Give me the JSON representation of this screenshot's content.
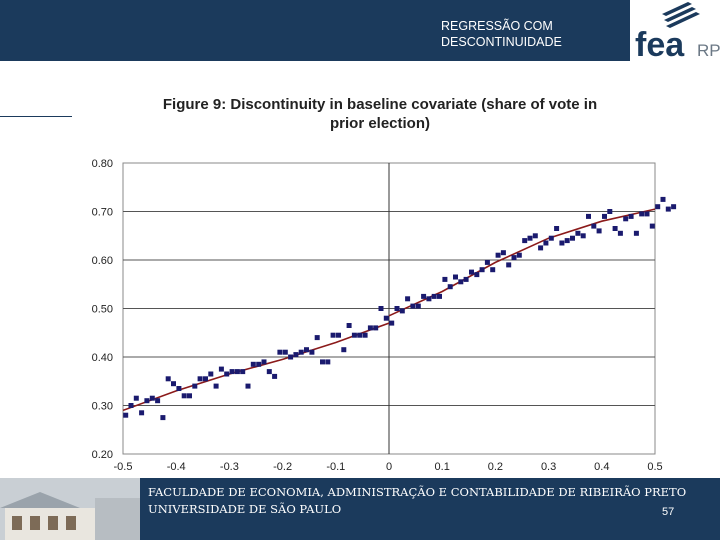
{
  "header": {
    "title_line1": "REGRESSÃO COM",
    "title_line2": "DESCONTINUIDADE",
    "logo_text": "fea",
    "logo_suffix": "RP"
  },
  "figure": {
    "title_line1": "Figure 9: Discontinuity in baseline covariate (share of vote in",
    "title_line2": "prior election)"
  },
  "chart_data": {
    "type": "scatter",
    "title": "Figure 9: Discontinuity in baseline covariate (share of vote in prior election)",
    "xlabel": "",
    "ylabel": "",
    "xlim": [
      -0.5,
      0.5
    ],
    "ylim": [
      0.2,
      0.8
    ],
    "x_ticks": [
      "-0.5",
      "-0.4",
      "-0.3",
      "-0.2",
      "-0.1",
      "0",
      "0.1",
      "0.2",
      "0.3",
      "0.4",
      "0.5"
    ],
    "y_ticks": [
      "0.20",
      "0.30",
      "0.40",
      "0.50",
      "0.60",
      "0.70",
      "0.80"
    ],
    "grid": "horizontal",
    "cutoff": 0,
    "points_color": "#1a1a6e",
    "fit_color": "#8b1a1a",
    "points": [
      [
        -0.495,
        0.28
      ],
      [
        -0.485,
        0.3
      ],
      [
        -0.475,
        0.315
      ],
      [
        -0.465,
        0.285
      ],
      [
        -0.455,
        0.31
      ],
      [
        -0.445,
        0.315
      ],
      [
        -0.435,
        0.31
      ],
      [
        -0.425,
        0.275
      ],
      [
        -0.415,
        0.355
      ],
      [
        -0.405,
        0.345
      ],
      [
        -0.395,
        0.335
      ],
      [
        -0.385,
        0.32
      ],
      [
        -0.375,
        0.32
      ],
      [
        -0.365,
        0.34
      ],
      [
        -0.355,
        0.355
      ],
      [
        -0.345,
        0.355
      ],
      [
        -0.335,
        0.365
      ],
      [
        -0.325,
        0.34
      ],
      [
        -0.315,
        0.375
      ],
      [
        -0.305,
        0.365
      ],
      [
        -0.295,
        0.37
      ],
      [
        -0.285,
        0.37
      ],
      [
        -0.275,
        0.37
      ],
      [
        -0.265,
        0.34
      ],
      [
        -0.255,
        0.385
      ],
      [
        -0.245,
        0.385
      ],
      [
        -0.235,
        0.39
      ],
      [
        -0.225,
        0.37
      ],
      [
        -0.215,
        0.36
      ],
      [
        -0.205,
        0.41
      ],
      [
        -0.195,
        0.41
      ],
      [
        -0.185,
        0.4
      ],
      [
        -0.175,
        0.405
      ],
      [
        -0.165,
        0.41
      ],
      [
        -0.155,
        0.415
      ],
      [
        -0.145,
        0.41
      ],
      [
        -0.135,
        0.44
      ],
      [
        -0.125,
        0.39
      ],
      [
        -0.115,
        0.39
      ],
      [
        -0.105,
        0.445
      ],
      [
        -0.095,
        0.445
      ],
      [
        -0.085,
        0.415
      ],
      [
        -0.075,
        0.465
      ],
      [
        -0.065,
        0.445
      ],
      [
        -0.055,
        0.445
      ],
      [
        -0.045,
        0.445
      ],
      [
        -0.035,
        0.46
      ],
      [
        -0.025,
        0.46
      ],
      [
        -0.015,
        0.5
      ],
      [
        -0.005,
        0.48
      ],
      [
        0.005,
        0.47
      ],
      [
        0.015,
        0.5
      ],
      [
        0.025,
        0.495
      ],
      [
        0.035,
        0.52
      ],
      [
        0.045,
        0.505
      ],
      [
        0.055,
        0.505
      ],
      [
        0.065,
        0.525
      ],
      [
        0.075,
        0.52
      ],
      [
        0.085,
        0.525
      ],
      [
        0.095,
        0.525
      ],
      [
        0.105,
        0.56
      ],
      [
        0.115,
        0.545
      ],
      [
        0.125,
        0.565
      ],
      [
        0.135,
        0.555
      ],
      [
        0.145,
        0.56
      ],
      [
        0.155,
        0.575
      ],
      [
        0.165,
        0.57
      ],
      [
        0.175,
        0.58
      ],
      [
        0.185,
        0.595
      ],
      [
        0.195,
        0.58
      ],
      [
        0.205,
        0.61
      ],
      [
        0.215,
        0.615
      ],
      [
        0.225,
        0.59
      ],
      [
        0.235,
        0.605
      ],
      [
        0.245,
        0.61
      ],
      [
        0.255,
        0.64
      ],
      [
        0.265,
        0.645
      ],
      [
        0.275,
        0.65
      ],
      [
        0.285,
        0.625
      ],
      [
        0.295,
        0.635
      ],
      [
        0.305,
        0.645
      ],
      [
        0.315,
        0.665
      ],
      [
        0.325,
        0.635
      ],
      [
        0.335,
        0.64
      ],
      [
        0.345,
        0.645
      ],
      [
        0.355,
        0.655
      ],
      [
        0.365,
        0.65
      ],
      [
        0.375,
        0.69
      ],
      [
        0.385,
        0.67
      ],
      [
        0.395,
        0.66
      ],
      [
        0.405,
        0.69
      ],
      [
        0.415,
        0.7
      ],
      [
        0.425,
        0.665
      ],
      [
        0.435,
        0.655
      ],
      [
        0.445,
        0.685
      ],
      [
        0.455,
        0.69
      ],
      [
        0.465,
        0.655
      ],
      [
        0.475,
        0.695
      ],
      [
        0.485,
        0.695
      ],
      [
        0.495,
        0.67
      ],
      [
        0.505,
        0.71
      ],
      [
        0.515,
        0.725
      ],
      [
        0.525,
        0.705
      ],
      [
        0.535,
        0.71
      ]
    ],
    "fit_left": [
      [
        -0.5,
        0.29
      ],
      [
        -0.4,
        0.33
      ],
      [
        -0.3,
        0.365
      ],
      [
        -0.2,
        0.395
      ],
      [
        -0.1,
        0.43
      ],
      [
        0,
        0.47
      ]
    ],
    "fit_right": [
      [
        0,
        0.485
      ],
      [
        0.1,
        0.535
      ],
      [
        0.2,
        0.595
      ],
      [
        0.3,
        0.645
      ],
      [
        0.4,
        0.68
      ],
      [
        0.5,
        0.705
      ]
    ]
  },
  "footer": {
    "line1": "FACULDADE DE ECONOMIA, ADMINISTRAÇÃO E CONTABILIDADE DE RIBEIRÃO PRETO",
    "line2": "UNIVERSIDADE DE SÃO PAULO",
    "page_number": "57"
  }
}
